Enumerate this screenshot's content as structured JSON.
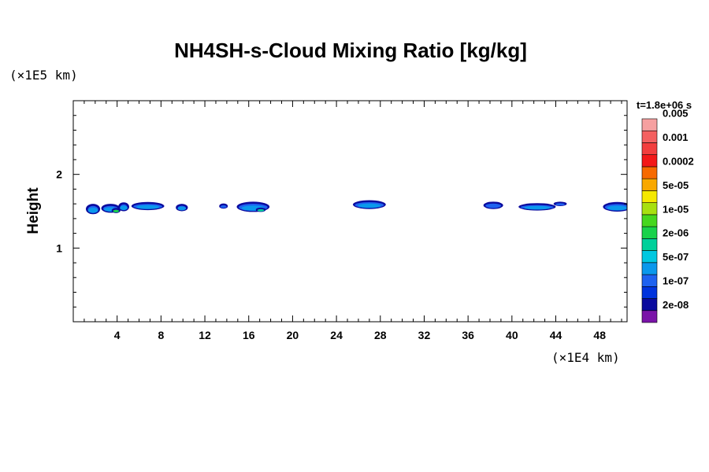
{
  "chart_data": {
    "type": "heatmap",
    "title": "NH4SH-s-Cloud Mixing Ratio [kg/kg]",
    "ylabel": "Height",
    "xlabel": "",
    "x_scale_label": "(×1E4 km)",
    "y_scale_label": "(×1E5 km)",
    "time_label": "t=1.8e+06 s",
    "xlim": [
      0,
      50.5
    ],
    "ylim": [
      0,
      3.0
    ],
    "x_ticks": [
      4,
      8,
      12,
      16,
      20,
      24,
      28,
      32,
      36,
      40,
      44,
      48
    ],
    "x_minor_step": 1,
    "y_ticks": [
      1,
      2
    ],
    "y_minor_step": 0.2,
    "colorbar": {
      "levels": [
        "2e-08",
        "1e-07",
        "5e-07",
        "2e-06",
        "1e-05",
        "5e-05",
        "0.0002",
        "0.001",
        "0.005"
      ],
      "colors": [
        "#7a14a8",
        "#0a0a9e",
        "#0033dd",
        "#1e62f0",
        "#0a98ec",
        "#00c8e0",
        "#00d09a",
        "#19d24a",
        "#46d71e",
        "#a8e010",
        "#f5e800",
        "#f9a800",
        "#f76a00",
        "#f31818",
        "#f23e3e",
        "#f46060",
        "#f6a0a0"
      ]
    },
    "cloud_patches": [
      {
        "x": 1.8,
        "y": 1.53,
        "w": 1.3,
        "h": 0.14,
        "level": 4
      },
      {
        "x": 3.4,
        "y": 1.54,
        "w": 1.7,
        "h": 0.12,
        "level": 4
      },
      {
        "x": 3.9,
        "y": 1.51,
        "w": 0.8,
        "h": 0.07,
        "level": 7
      },
      {
        "x": 4.6,
        "y": 1.56,
        "w": 1.0,
        "h": 0.12,
        "level": 4
      },
      {
        "x": 6.8,
        "y": 1.57,
        "w": 3.0,
        "h": 0.11,
        "level": 4
      },
      {
        "x": 9.9,
        "y": 1.55,
        "w": 1.1,
        "h": 0.1,
        "level": 4
      },
      {
        "x": 13.7,
        "y": 1.57,
        "w": 0.8,
        "h": 0.07,
        "level": 3
      },
      {
        "x": 16.4,
        "y": 1.56,
        "w": 3.0,
        "h": 0.14,
        "level": 4
      },
      {
        "x": 17.1,
        "y": 1.52,
        "w": 0.9,
        "h": 0.06,
        "level": 6
      },
      {
        "x": 27.0,
        "y": 1.59,
        "w": 3.0,
        "h": 0.12,
        "level": 4
      },
      {
        "x": 38.3,
        "y": 1.58,
        "w": 1.8,
        "h": 0.1,
        "level": 3
      },
      {
        "x": 42.3,
        "y": 1.56,
        "w": 3.4,
        "h": 0.1,
        "level": 4
      },
      {
        "x": 44.4,
        "y": 1.6,
        "w": 1.2,
        "h": 0.06,
        "level": 3
      },
      {
        "x": 49.6,
        "y": 1.56,
        "w": 2.6,
        "h": 0.13,
        "level": 4
      }
    ]
  }
}
